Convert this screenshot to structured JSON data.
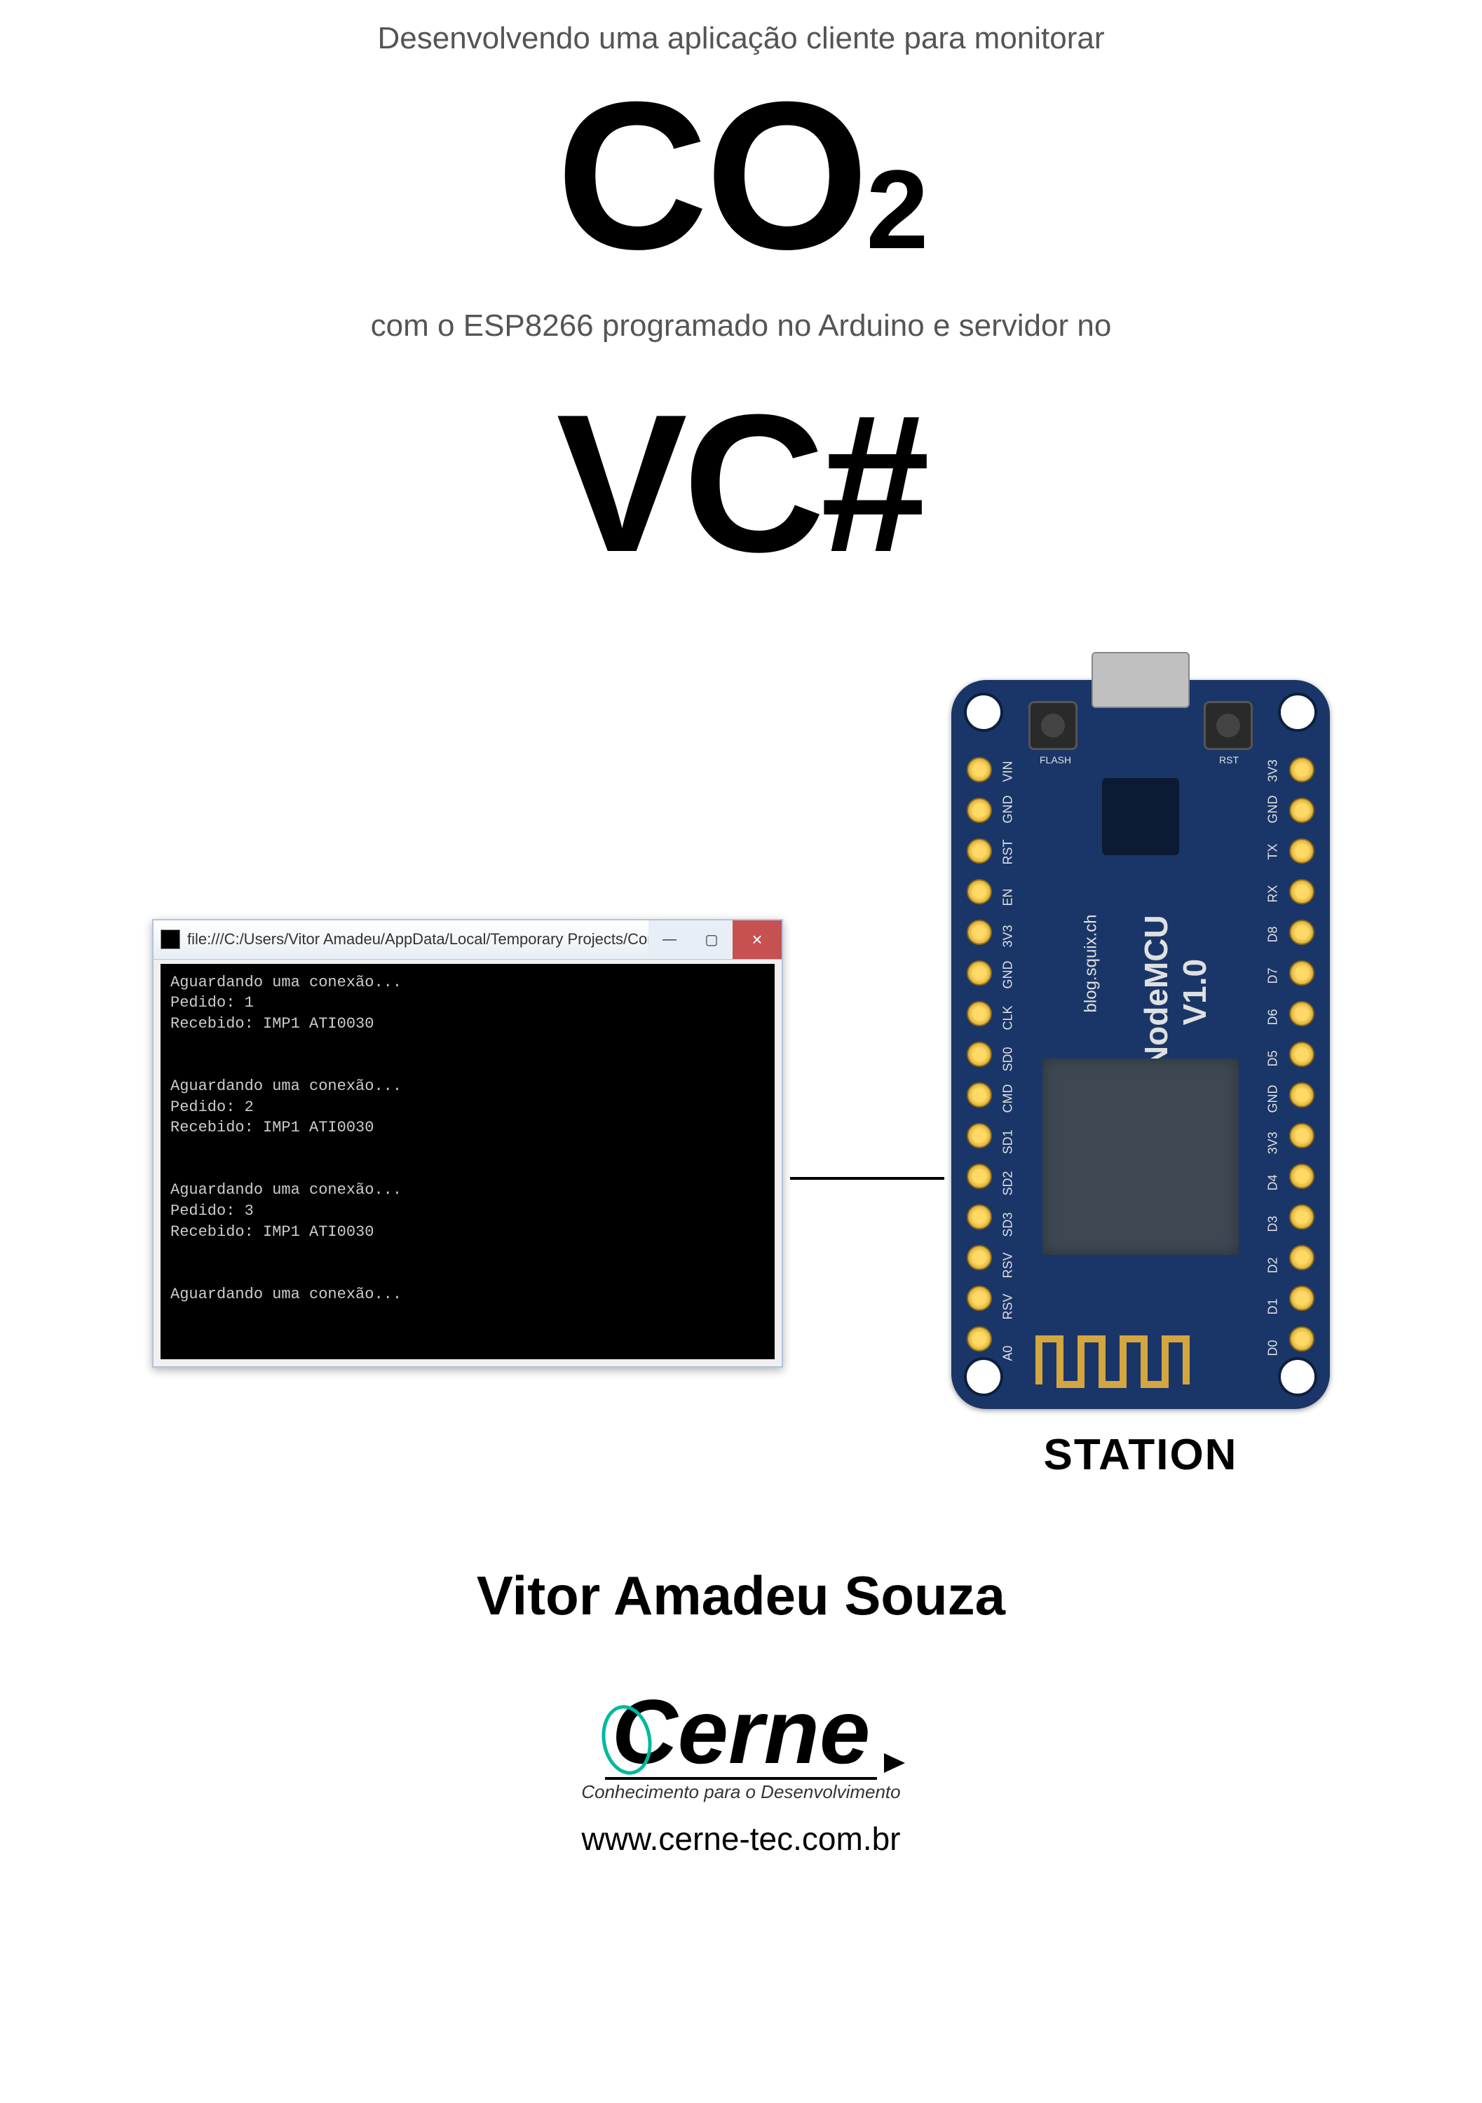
{
  "header": {
    "subtitle_top": "Desenvolvendo uma aplicação cliente para monitorar",
    "co2_main": "CO",
    "co2_sub": "2",
    "subtitle_mid": "com o ESP8266 programado no Arduino e servidor no",
    "vcsharp": "VC#"
  },
  "console": {
    "title": "file:///C:/Users/Vitor Amadeu/AppData/Local/Temporary Projects/ConsoleAppl…",
    "btn_min": "—",
    "btn_max": "▢",
    "btn_close": "×",
    "body": "Aguardando uma conexão...\nPedido: 1\nRecebido: IMP1 ATI0030\n\n\nAguardando uma conexão...\nPedido: 2\nRecebido: IMP1 ATI0030\n\n\nAguardando uma conexão...\nPedido: 3\nRecebido: IMP1 ATI0030\n\n\nAguardando uma conexão...",
    "bg_color": "#000000",
    "text_color": "#cccccc",
    "titlebar_bg": "#e8eef5",
    "close_bg": "#c75050"
  },
  "nodemcu": {
    "board_color": "#1a3668",
    "pin_color": "#ffd966",
    "chip_color": "#3d4852",
    "antenna_color": "#d4a640",
    "btn_left_label": "FLASH",
    "btn_right_label": "RST",
    "text_line1": "blog.squix.ch",
    "text_line2_a": "NodeMCU",
    "text_line2_b": "V1.0",
    "pins_left": [
      "VIN",
      "GND",
      "RST",
      "EN",
      "3V3",
      "GND",
      "CLK",
      "SD0",
      "CMD",
      "SD1",
      "SD2",
      "SD3",
      "RSV",
      "RSV",
      "A0"
    ],
    "pins_right": [
      "3V3",
      "GND",
      "TX",
      "RX",
      "D8",
      "D7",
      "D6",
      "D5",
      "GND",
      "3V3",
      "D4",
      "D3",
      "D2",
      "D1",
      "D0"
    ],
    "station_label": "STATION"
  },
  "footer": {
    "author": "Vitor Amadeu Souza",
    "logo_text": "Cerne",
    "tagline": "Conhecimento para o Desenvolvimento",
    "url": "www.cerne-tec.com.br",
    "accent_color": "#00b8a0"
  }
}
